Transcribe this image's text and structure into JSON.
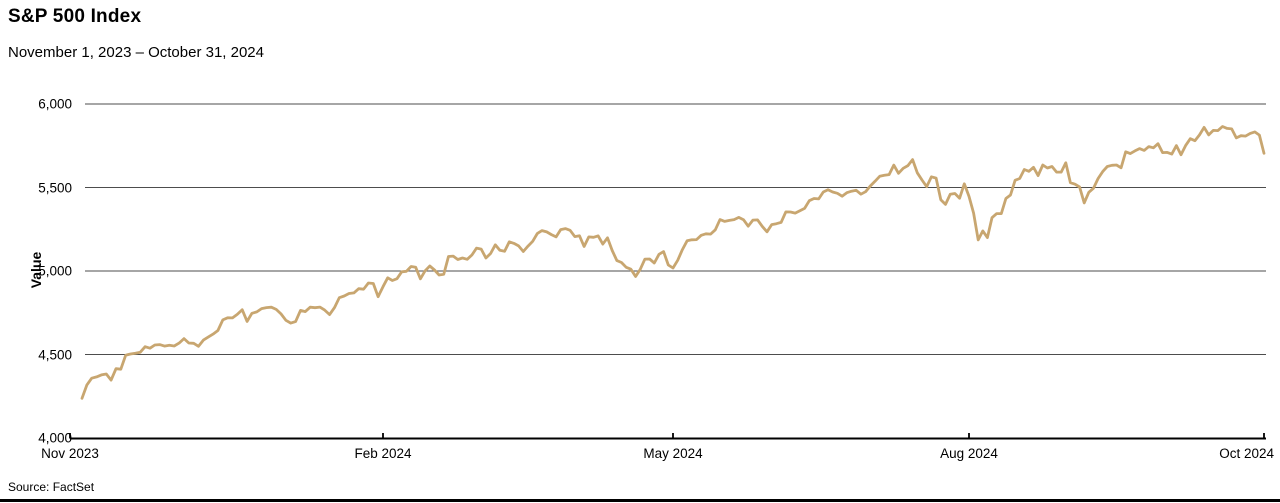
{
  "header": {
    "title": "S&P 500 Index",
    "subtitle": "November 1, 2023 – October 31, 2024"
  },
  "footer": {
    "source": "Source: FactSet"
  },
  "chart_data": {
    "type": "line",
    "title": "S&P 500 Index",
    "subtitle": "November 1, 2023 – October 31, 2024",
    "ylabel": "Value",
    "xlabel": "",
    "ylim": [
      4000,
      6000
    ],
    "grid": "horizontal",
    "legend_position": "none",
    "line_color": "#C8A670",
    "grid_color": "#4d4d4d",
    "axis_color": "#000000",
    "y_ticks": [
      {
        "value": 4000,
        "label": "4,000"
      },
      {
        "value": 4500,
        "label": "4,500"
      },
      {
        "value": 5000,
        "label": "5,000"
      },
      {
        "value": 5500,
        "label": "5,500"
      },
      {
        "value": 6000,
        "label": "6,000"
      }
    ],
    "x_ticks": [
      {
        "day": 0,
        "label": "Nov 2023"
      },
      {
        "day": 62,
        "label": "Feb 2024"
      },
      {
        "day": 124,
        "label": "May 2024"
      },
      {
        "day": 187,
        "label": "Aug 2024"
      },
      {
        "day": 251,
        "label": "Oct 2024"
      }
    ],
    "series": [
      {
        "name": "S&P 500 Index",
        "x_unit": "trading day index from Nov 1, 2023 (day 0) to Oct 31, 2024 (day 251)",
        "values": [
          4238,
          4318,
          4358,
          4366,
          4378,
          4383,
          4347,
          4415,
          4412,
          4496,
          4503,
          4508,
          4514,
          4547,
          4538,
          4557,
          4559,
          4550,
          4555,
          4551,
          4568,
          4595,
          4569,
          4567,
          4549,
          4586,
          4604,
          4622,
          4644,
          4707,
          4720,
          4719,
          4741,
          4768,
          4698,
          4747,
          4755,
          4775,
          4781,
          4783,
          4770,
          4743,
          4705,
          4688,
          4697,
          4764,
          4757,
          4783,
          4780,
          4784,
          4766,
          4739,
          4781,
          4840,
          4850,
          4865,
          4869,
          4894,
          4891,
          4928,
          4925,
          4846,
          4906,
          4959,
          4943,
          4954,
          4995,
          4998,
          5027,
          5022,
          4953,
          5001,
          5030,
          5006,
          4976,
          4981,
          5087,
          5089,
          5069,
          5078,
          5070,
          5096,
          5137,
          5131,
          5078,
          5105,
          5157,
          5124,
          5118,
          5175,
          5165,
          5150,
          5117,
          5149,
          5178,
          5225,
          5242,
          5234,
          5218,
          5204,
          5248,
          5254,
          5244,
          5206,
          5211,
          5147,
          5204,
          5202,
          5210,
          5161,
          5199,
          5123,
          5062,
          5051,
          5022,
          5011,
          4967,
          5011,
          5071,
          5072,
          5048,
          5100,
          5116,
          5036,
          5018,
          5064,
          5128,
          5181,
          5187,
          5188,
          5214,
          5223,
          5221,
          5247,
          5308,
          5297,
          5303,
          5308,
          5321,
          5307,
          5268,
          5305,
          5306,
          5267,
          5235,
          5278,
          5283,
          5291,
          5354,
          5353,
          5347,
          5361,
          5375,
          5421,
          5434,
          5432,
          5473,
          5487,
          5473,
          5465,
          5448,
          5469,
          5478,
          5483,
          5460,
          5475,
          5509,
          5537,
          5567,
          5573,
          5577,
          5634,
          5585,
          5615,
          5631,
          5667,
          5588,
          5545,
          5505,
          5564,
          5556,
          5427,
          5399,
          5459,
          5464,
          5436,
          5522,
          5447,
          5347,
          5186,
          5240,
          5200,
          5319,
          5344,
          5344,
          5434,
          5455,
          5543,
          5554,
          5608,
          5597,
          5621,
          5571,
          5635,
          5617,
          5626,
          5592,
          5592,
          5648,
          5529,
          5520,
          5503,
          5408,
          5471,
          5496,
          5554,
          5595,
          5626,
          5633,
          5635,
          5618,
          5714,
          5703,
          5719,
          5733,
          5722,
          5745,
          5738,
          5762,
          5709,
          5710,
          5700,
          5751,
          5696,
          5751,
          5792,
          5780,
          5815,
          5860,
          5815,
          5842,
          5841,
          5865,
          5854,
          5851,
          5797,
          5810,
          5808,
          5824,
          5833,
          5814,
          5705
        ]
      }
    ]
  }
}
